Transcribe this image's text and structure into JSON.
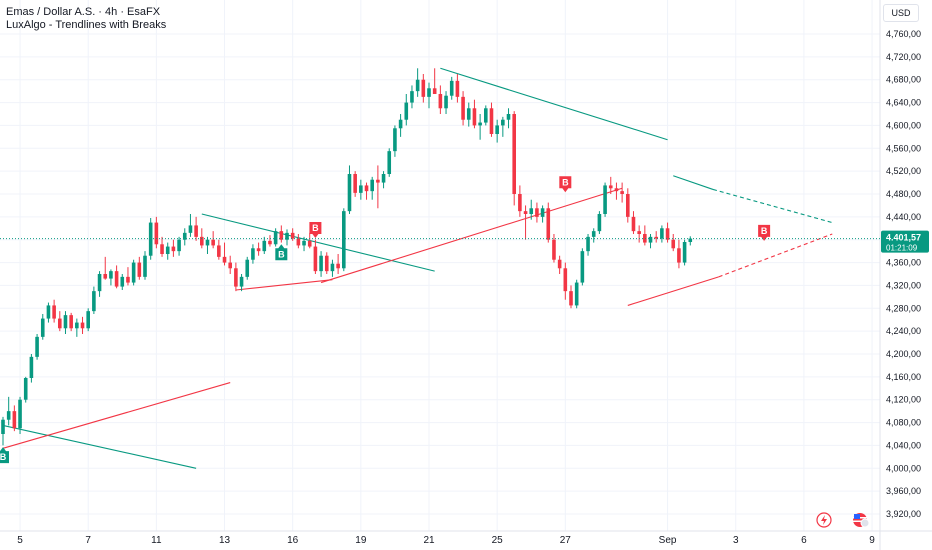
{
  "legend": {
    "symbol_line": "Emas / Dollar A.S. · 4h · EsaFX",
    "indicator": "LuxAlgo - Trendlines with Breaks"
  },
  "currency_button": "USD",
  "icons": {
    "flash": "lightning-icon",
    "flag": "us-flag-icon"
  },
  "colors": {
    "up": "#089981",
    "down": "#f23645",
    "text": "#131722",
    "grid": "#f0f3fa"
  },
  "chart_data": {
    "type": "candlestick",
    "title": "Emas / Dollar A.S.",
    "interval": "4h",
    "source": "EsaFX",
    "ylim": [
      3910,
      4800
    ],
    "y_ticks": [
      "4,760,00",
      "4,720,00",
      "4,680,00",
      "4,640,00",
      "4,600,00",
      "4,560,00",
      "4,520,00",
      "4,480,00",
      "4,440,00",
      "4,400,00",
      "4,360,00",
      "4,320,00",
      "4,280,00",
      "4,240,00",
      "4,200,00",
      "4,160,00",
      "4,120,00",
      "4,080,00",
      "4,040,00",
      "4,000,00",
      "3,960,00",
      "3,920,00"
    ],
    "y_tick_values": [
      4760,
      4720,
      4680,
      4640,
      4600,
      4560,
      4520,
      4480,
      4440,
      4400,
      4360,
      4320,
      4280,
      4240,
      4200,
      4160,
      4120,
      4080,
      4040,
      4000,
      3960,
      3920
    ],
    "x_ticks": [
      {
        "label": "5",
        "i": 3
      },
      {
        "label": "7",
        "i": 15
      },
      {
        "label": "11",
        "i": 27
      },
      {
        "label": "13",
        "i": 39
      },
      {
        "label": "16",
        "i": 51
      },
      {
        "label": "19",
        "i": 63
      },
      {
        "label": "21",
        "i": 75
      },
      {
        "label": "25",
        "i": 87
      },
      {
        "label": "27",
        "i": 99
      },
      {
        "label": "Sep",
        "i": 117
      },
      {
        "label": "3",
        "i": 129
      },
      {
        "label": "6",
        "i": 141
      },
      {
        "label": "9",
        "i": 153
      }
    ],
    "last_price": "4.401,57",
    "countdown": "01:21:09",
    "candles": [
      [
        4060,
        4090,
        4040,
        4085
      ],
      [
        4085,
        4125,
        4075,
        4100
      ],
      [
        4100,
        4110,
        4065,
        4070
      ],
      [
        4070,
        4125,
        4060,
        4120
      ],
      [
        4120,
        4160,
        4115,
        4158
      ],
      [
        4158,
        4200,
        4150,
        4195
      ],
      [
        4195,
        4235,
        4190,
        4230
      ],
      [
        4230,
        4270,
        4225,
        4262
      ],
      [
        4262,
        4290,
        4255,
        4285
      ],
      [
        4285,
        4295,
        4255,
        4262
      ],
      [
        4262,
        4275,
        4240,
        4245
      ],
      [
        4245,
        4275,
        4235,
        4268
      ],
      [
        4268,
        4272,
        4240,
        4245
      ],
      [
        4245,
        4262,
        4230,
        4255
      ],
      [
        4255,
        4265,
        4235,
        4245
      ],
      [
        4245,
        4280,
        4240,
        4275
      ],
      [
        4275,
        4318,
        4270,
        4310
      ],
      [
        4310,
        4345,
        4300,
        4340
      ],
      [
        4340,
        4370,
        4330,
        4332
      ],
      [
        4332,
        4348,
        4320,
        4345
      ],
      [
        4345,
        4355,
        4315,
        4318
      ],
      [
        4318,
        4340,
        4312,
        4335
      ],
      [
        4335,
        4352,
        4320,
        4325
      ],
      [
        4325,
        4365,
        4320,
        4360
      ],
      [
        4360,
        4370,
        4330,
        4335
      ],
      [
        4335,
        4380,
        4330,
        4372
      ],
      [
        4372,
        4438,
        4365,
        4430
      ],
      [
        4430,
        4440,
        4385,
        4392
      ],
      [
        4392,
        4405,
        4370,
        4375
      ],
      [
        4375,
        4395,
        4365,
        4388
      ],
      [
        4388,
        4400,
        4370,
        4380
      ],
      [
        4380,
        4405,
        4372,
        4400
      ],
      [
        4400,
        4420,
        4390,
        4412
      ],
      [
        4412,
        4445,
        4405,
        4425
      ],
      [
        4425,
        4440,
        4398,
        4405
      ],
      [
        4405,
        4420,
        4385,
        4390
      ],
      [
        4390,
        4405,
        4375,
        4400
      ],
      [
        4400,
        4415,
        4385,
        4390
      ],
      [
        4390,
        4400,
        4365,
        4370
      ],
      [
        4370,
        4395,
        4355,
        4360
      ],
      [
        4360,
        4372,
        4340,
        4350
      ],
      [
        4350,
        4360,
        4310,
        4318
      ],
      [
        4318,
        4340,
        4310,
        4335
      ],
      [
        4335,
        4370,
        4330,
        4365
      ],
      [
        4365,
        4392,
        4358,
        4385
      ],
      [
        4385,
        4395,
        4372,
        4380
      ],
      [
        4380,
        4405,
        4375,
        4398
      ],
      [
        4398,
        4408,
        4388,
        4392
      ],
      [
        4392,
        4420,
        4388,
        4415
      ],
      [
        4415,
        4425,
        4395,
        4400
      ],
      [
        4400,
        4418,
        4390,
        4412
      ],
      [
        4412,
        4420,
        4398,
        4402
      ],
      [
        4402,
        4410,
        4385,
        4390
      ],
      [
        4390,
        4405,
        4380,
        4398
      ],
      [
        4398,
        4412,
        4385,
        4388
      ],
      [
        4388,
        4400,
        4340,
        4345
      ],
      [
        4345,
        4380,
        4335,
        4372
      ],
      [
        4372,
        4378,
        4340,
        4345
      ],
      [
        4345,
        4365,
        4335,
        4358
      ],
      [
        4358,
        4375,
        4340,
        4350
      ],
      [
        4350,
        4455,
        4345,
        4450
      ],
      [
        4450,
        4530,
        4445,
        4515
      ],
      [
        4515,
        4520,
        4475,
        4482
      ],
      [
        4482,
        4505,
        4470,
        4495
      ],
      [
        4495,
        4500,
        4470,
        4485
      ],
      [
        4485,
        4510,
        4470,
        4505
      ],
      [
        4505,
        4530,
        4455,
        4500
      ],
      [
        4500,
        4520,
        4490,
        4515
      ],
      [
        4515,
        4560,
        4510,
        4555
      ],
      [
        4555,
        4600,
        4545,
        4595
      ],
      [
        4595,
        4620,
        4580,
        4610
      ],
      [
        4610,
        4655,
        4600,
        4640
      ],
      [
        4640,
        4670,
        4630,
        4660
      ],
      [
        4660,
        4700,
        4650,
        4680
      ],
      [
        4680,
        4690,
        4640,
        4650
      ],
      [
        4650,
        4675,
        4630,
        4665
      ],
      [
        4665,
        4700,
        4655,
        4655
      ],
      [
        4655,
        4670,
        4620,
        4630
      ],
      [
        4630,
        4660,
        4620,
        4652
      ],
      [
        4652,
        4685,
        4645,
        4678
      ],
      [
        4678,
        4690,
        4640,
        4650
      ],
      [
        4650,
        4660,
        4600,
        4610
      ],
      [
        4610,
        4640,
        4598,
        4630
      ],
      [
        4630,
        4645,
        4595,
        4600
      ],
      [
        4600,
        4620,
        4575,
        4605
      ],
      [
        4605,
        4635,
        4600,
        4630
      ],
      [
        4630,
        4640,
        4580,
        4585
      ],
      [
        4585,
        4610,
        4570,
        4600
      ],
      [
        4600,
        4615,
        4580,
        4610
      ],
      [
        4610,
        4630,
        4595,
        4620
      ],
      [
        4620,
        4625,
        4460,
        4480
      ],
      [
        4480,
        4495,
        4440,
        4450
      ],
      [
        4450,
        4460,
        4400,
        4445
      ],
      [
        4445,
        4470,
        4435,
        4455
      ],
      [
        4455,
        4465,
        4430,
        4440
      ],
      [
        4440,
        4460,
        4430,
        4455
      ],
      [
        4455,
        4465,
        4395,
        4400
      ],
      [
        4400,
        4410,
        4360,
        4365
      ],
      [
        4365,
        4372,
        4340,
        4350
      ],
      [
        4350,
        4360,
        4295,
        4310
      ],
      [
        4310,
        4320,
        4280,
        4285
      ],
      [
        4285,
        4330,
        4280,
        4325
      ],
      [
        4325,
        4385,
        4320,
        4380
      ],
      [
        4380,
        4410,
        4372,
        4405
      ],
      [
        4405,
        4420,
        4395,
        4415
      ],
      [
        4415,
        4450,
        4410,
        4445
      ],
      [
        4445,
        4500,
        4440,
        4495
      ],
      [
        4495,
        4510,
        4480,
        4490
      ],
      [
        4490,
        4500,
        4470,
        4485
      ],
      [
        4485,
        4500,
        4465,
        4480
      ],
      [
        4480,
        4490,
        4430,
        4440
      ],
      [
        4440,
        4450,
        4410,
        4415
      ],
      [
        4415,
        4425,
        4395,
        4410
      ],
      [
        4410,
        4425,
        4390,
        4395
      ],
      [
        4395,
        4410,
        4385,
        4405
      ],
      [
        4405,
        4415,
        4395,
        4402
      ],
      [
        4402,
        4425,
        4395,
        4420
      ],
      [
        4420,
        4430,
        4395,
        4400
      ],
      [
        4400,
        4410,
        4380,
        4385
      ],
      [
        4385,
        4400,
        4350,
        4360
      ],
      [
        4360,
        4400,
        4355,
        4396
      ],
      [
        4396,
        4406,
        4390,
        4402
      ]
    ],
    "trendlines": [
      {
        "color": "#089981",
        "dashed": false,
        "from": [
          0,
          4075
        ],
        "to": [
          34,
          4000
        ]
      },
      {
        "color": "#f23645",
        "dashed": false,
        "from": [
          0,
          4035
        ],
        "to": [
          40,
          4150
        ]
      },
      {
        "color": "#089981",
        "dashed": false,
        "from": [
          35,
          4445
        ],
        "to": [
          76,
          4345
        ]
      },
      {
        "color": "#f23645",
        "dashed": false,
        "from": [
          41,
          4312
        ],
        "to": [
          58,
          4330
        ]
      },
      {
        "color": "#f23645",
        "dashed": false,
        "from": [
          56,
          4325
        ],
        "to": [
          109,
          4490
        ]
      },
      {
        "color": "#089981",
        "dashed": false,
        "from": [
          77,
          4700
        ],
        "to": [
          117,
          4575
        ]
      },
      {
        "color": "#089981",
        "dashed": false,
        "from": [
          118,
          4512
        ],
        "to": [
          125,
          4488
        ]
      },
      {
        "color": "#089981",
        "dashed": true,
        "from": [
          125,
          4488
        ],
        "to": [
          146,
          4430
        ]
      },
      {
        "color": "#f23645",
        "dashed": false,
        "from": [
          110,
          4285
        ],
        "to": [
          126,
          4335
        ]
      },
      {
        "color": "#f23645",
        "dashed": true,
        "from": [
          126,
          4335
        ],
        "to": [
          146,
          4410
        ]
      }
    ],
    "break_labels": [
      {
        "text": "B",
        "type": "bull",
        "i": 0,
        "price": 4030
      },
      {
        "text": "B",
        "type": "bull",
        "i": 49,
        "price": 4385
      },
      {
        "text": "B",
        "type": "bear",
        "i": 55,
        "price": 4410
      },
      {
        "text": "B",
        "type": "bear",
        "i": 99,
        "price": 4490
      },
      {
        "text": "B",
        "type": "bear",
        "i": 134,
        "price": 4405
      }
    ]
  }
}
